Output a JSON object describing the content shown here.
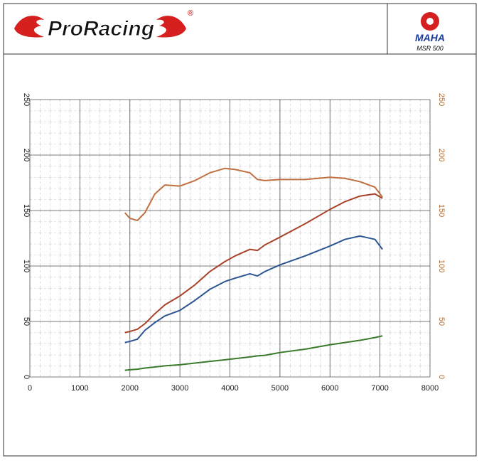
{
  "header": {
    "logo": "ProRacing",
    "registered": "®",
    "brand": "MAHA",
    "model": "MSR 500"
  },
  "chart_data": {
    "type": "line",
    "x": [
      1900,
      2000,
      2150,
      2300,
      2500,
      2700,
      3000,
      3300,
      3600,
      3900,
      4100,
      4400,
      4550,
      4700,
      5000,
      5500,
      6000,
      6300,
      6600,
      6900,
      7050
    ],
    "series": [
      {
        "color": "#c07040",
        "axis": "y2",
        "values": [
          148,
          143,
          141,
          148,
          165,
          173,
          172,
          177,
          184,
          188,
          187,
          184,
          178,
          177,
          178,
          178,
          180,
          179,
          176,
          171,
          162
        ]
      },
      {
        "color": "#a8432a",
        "values": [
          40,
          41,
          43,
          48,
          57,
          65,
          73,
          83,
          95,
          104,
          109,
          115,
          114,
          119,
          126,
          138,
          151,
          158,
          163,
          165,
          161
        ]
      },
      {
        "color": "#2d5592",
        "values": [
          31,
          32,
          34,
          42,
          49,
          55,
          60,
          69,
          79,
          86,
          89,
          93,
          91,
          95,
          101,
          109,
          118,
          124,
          127,
          124,
          115
        ]
      },
      {
        "color": "#3a7a2a",
        "values": [
          6,
          6.5,
          7,
          8,
          9,
          10,
          11,
          12.5,
          14,
          15.5,
          16.5,
          18,
          19,
          19.5,
          22,
          25,
          29,
          31,
          33,
          35.5,
          37
        ]
      }
    ],
    "xlim": [
      0,
      8000
    ],
    "xticks": [
      0,
      1000,
      2000,
      3000,
      4000,
      5000,
      6000,
      7000,
      8000
    ],
    "ylim": [
      0,
      250
    ],
    "yticks": [
      0,
      50,
      100,
      150,
      200,
      250
    ],
    "y2lim": [
      0,
      250
    ],
    "y2ticks": [
      0,
      50,
      100,
      150,
      200,
      250
    ],
    "y2color": "#b07038",
    "grid": true
  }
}
